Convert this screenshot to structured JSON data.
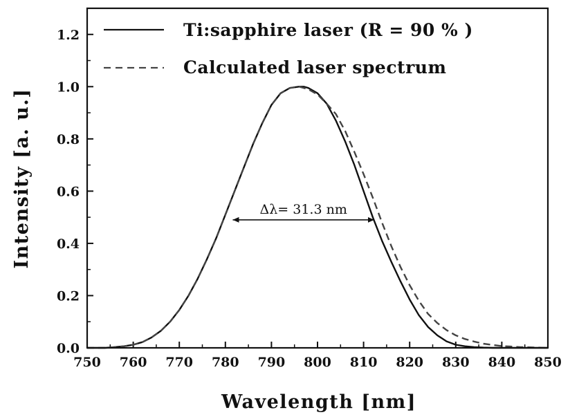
{
  "chart_data": {
    "type": "line",
    "xlabel": "Wavelength [nm]",
    "ylabel": "Intensity [a. u.]",
    "xlim": [
      750,
      850
    ],
    "ylim": [
      0.0,
      1.3
    ],
    "x_ticks": [
      "750",
      "760",
      "770",
      "780",
      "790",
      "800",
      "810",
      "820",
      "830",
      "840",
      "850"
    ],
    "y_ticks": [
      "0.0",
      "0.2",
      "0.4",
      "0.6",
      "0.8",
      "1.0",
      "1.2"
    ],
    "grid": false,
    "legend_position": "top-left",
    "series": [
      {
        "name": "Ti:sapphire laser (R = 90 % )",
        "style": "solid",
        "color": "#111111",
        "x": [
          750,
          752,
          754,
          756,
          758,
          760,
          762,
          764,
          766,
          768,
          770,
          772,
          774,
          776,
          778,
          780,
          782,
          784,
          786,
          788,
          790,
          792,
          794,
          796,
          797,
          798,
          800,
          802,
          804,
          806,
          808,
          810,
          812,
          814,
          816,
          818,
          820,
          822,
          824,
          826,
          828,
          830,
          832,
          834,
          836,
          838,
          840,
          845,
          850
        ],
        "y": [
          0.0,
          0.0,
          0.0,
          0.003,
          0.006,
          0.012,
          0.022,
          0.04,
          0.065,
          0.1,
          0.145,
          0.2,
          0.265,
          0.34,
          0.42,
          0.51,
          0.6,
          0.69,
          0.78,
          0.86,
          0.93,
          0.975,
          0.995,
          1.0,
          1.0,
          0.995,
          0.975,
          0.935,
          0.87,
          0.79,
          0.7,
          0.6,
          0.5,
          0.41,
          0.33,
          0.255,
          0.185,
          0.125,
          0.08,
          0.048,
          0.025,
          0.012,
          0.006,
          0.003,
          0.001,
          0.0,
          0.0,
          0.0,
          0.0
        ]
      },
      {
        "name": "Calculated laser spectrum",
        "style": "dashed",
        "color": "#444444",
        "x": [
          750,
          752,
          754,
          756,
          758,
          760,
          762,
          764,
          766,
          768,
          770,
          772,
          774,
          776,
          778,
          780,
          782,
          784,
          786,
          788,
          790,
          792,
          794,
          796,
          798,
          800,
          802,
          804,
          806,
          808,
          810,
          812,
          814,
          816,
          818,
          820,
          822,
          824,
          826,
          828,
          830,
          832,
          834,
          836,
          838,
          840,
          842,
          844,
          846,
          848,
          850
        ],
        "y": [
          0.0,
          0.0,
          0.0,
          0.003,
          0.006,
          0.012,
          0.022,
          0.04,
          0.065,
          0.1,
          0.145,
          0.2,
          0.265,
          0.34,
          0.42,
          0.51,
          0.6,
          0.69,
          0.78,
          0.86,
          0.93,
          0.975,
          0.995,
          1.0,
          0.99,
          0.97,
          0.935,
          0.895,
          0.83,
          0.75,
          0.665,
          0.575,
          0.48,
          0.39,
          0.31,
          0.24,
          0.18,
          0.13,
          0.095,
          0.068,
          0.048,
          0.034,
          0.024,
          0.016,
          0.011,
          0.007,
          0.005,
          0.003,
          0.002,
          0.001,
          0.0
        ]
      }
    ],
    "annotation": {
      "text": "Δλ= 31.3 nm",
      "x_start": 781.3,
      "x_end": 812.6,
      "y": 0.49
    }
  }
}
